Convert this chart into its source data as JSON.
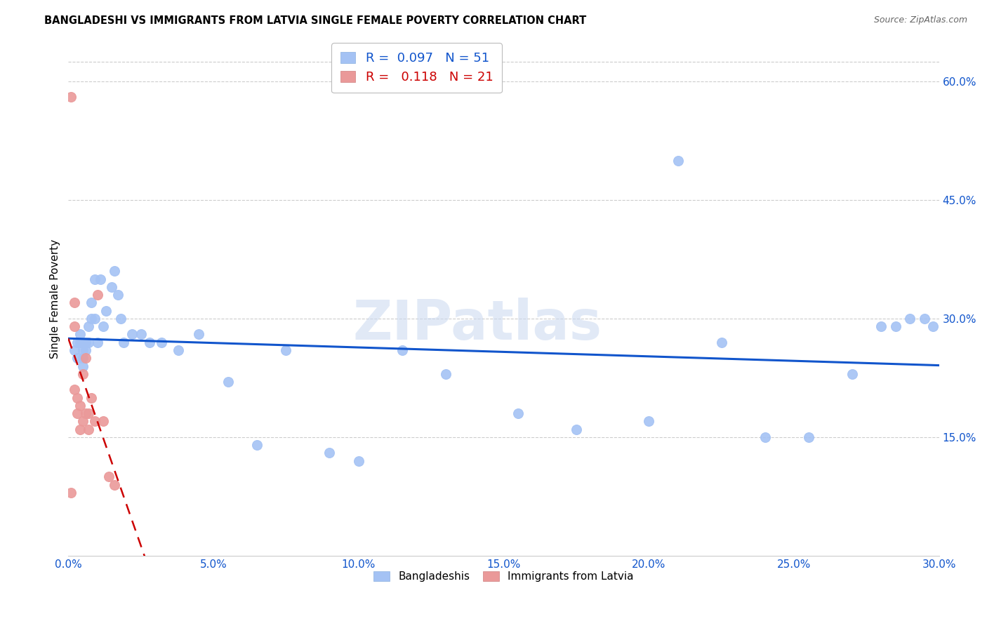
{
  "title": "BANGLADESHI VS IMMIGRANTS FROM LATVIA SINGLE FEMALE POVERTY CORRELATION CHART",
  "source": "Source: ZipAtlas.com",
  "ylabel": "Single Female Poverty",
  "xlim": [
    0.0,
    0.3
  ],
  "ylim": [
    0.0,
    0.65
  ],
  "xticks": [
    0.0,
    0.05,
    0.1,
    0.15,
    0.2,
    0.25,
    0.3
  ],
  "ytick_vals": [
    0.15,
    0.3,
    0.45,
    0.6
  ],
  "blue_color": "#a4c2f4",
  "pink_color": "#ea9999",
  "blue_line_color": "#1155cc",
  "pink_line_color": "#cc0000",
  "watermark_text": "ZIPatlas",
  "bangladeshi_x": [
    0.002,
    0.003,
    0.003,
    0.004,
    0.004,
    0.005,
    0.005,
    0.005,
    0.006,
    0.006,
    0.007,
    0.007,
    0.008,
    0.008,
    0.009,
    0.009,
    0.01,
    0.011,
    0.012,
    0.013,
    0.015,
    0.016,
    0.017,
    0.018,
    0.019,
    0.022,
    0.025,
    0.028,
    0.032,
    0.038,
    0.045,
    0.055,
    0.065,
    0.075,
    0.09,
    0.1,
    0.115,
    0.13,
    0.155,
    0.175,
    0.2,
    0.21,
    0.225,
    0.24,
    0.255,
    0.27,
    0.28,
    0.285,
    0.29,
    0.295,
    0.298
  ],
  "bangladeshi_y": [
    0.26,
    0.27,
    0.25,
    0.28,
    0.27,
    0.26,
    0.25,
    0.24,
    0.26,
    0.27,
    0.29,
    0.27,
    0.3,
    0.32,
    0.35,
    0.3,
    0.27,
    0.35,
    0.29,
    0.31,
    0.34,
    0.36,
    0.33,
    0.3,
    0.27,
    0.28,
    0.28,
    0.27,
    0.27,
    0.26,
    0.28,
    0.22,
    0.14,
    0.26,
    0.13,
    0.12,
    0.26,
    0.23,
    0.18,
    0.16,
    0.17,
    0.5,
    0.27,
    0.15,
    0.15,
    0.23,
    0.29,
    0.29,
    0.3,
    0.3,
    0.29
  ],
  "latvia_x": [
    0.001,
    0.001,
    0.002,
    0.002,
    0.002,
    0.003,
    0.003,
    0.004,
    0.004,
    0.005,
    0.005,
    0.006,
    0.006,
    0.007,
    0.007,
    0.008,
    0.009,
    0.01,
    0.012,
    0.014,
    0.016
  ],
  "latvia_y": [
    0.58,
    0.08,
    0.32,
    0.29,
    0.21,
    0.2,
    0.18,
    0.19,
    0.16,
    0.23,
    0.17,
    0.25,
    0.18,
    0.18,
    0.16,
    0.2,
    0.17,
    0.33,
    0.17,
    0.1,
    0.09
  ],
  "legend1_label": "R =  0.097   N = 51",
  "legend2_label": "R =   0.118   N = 21"
}
